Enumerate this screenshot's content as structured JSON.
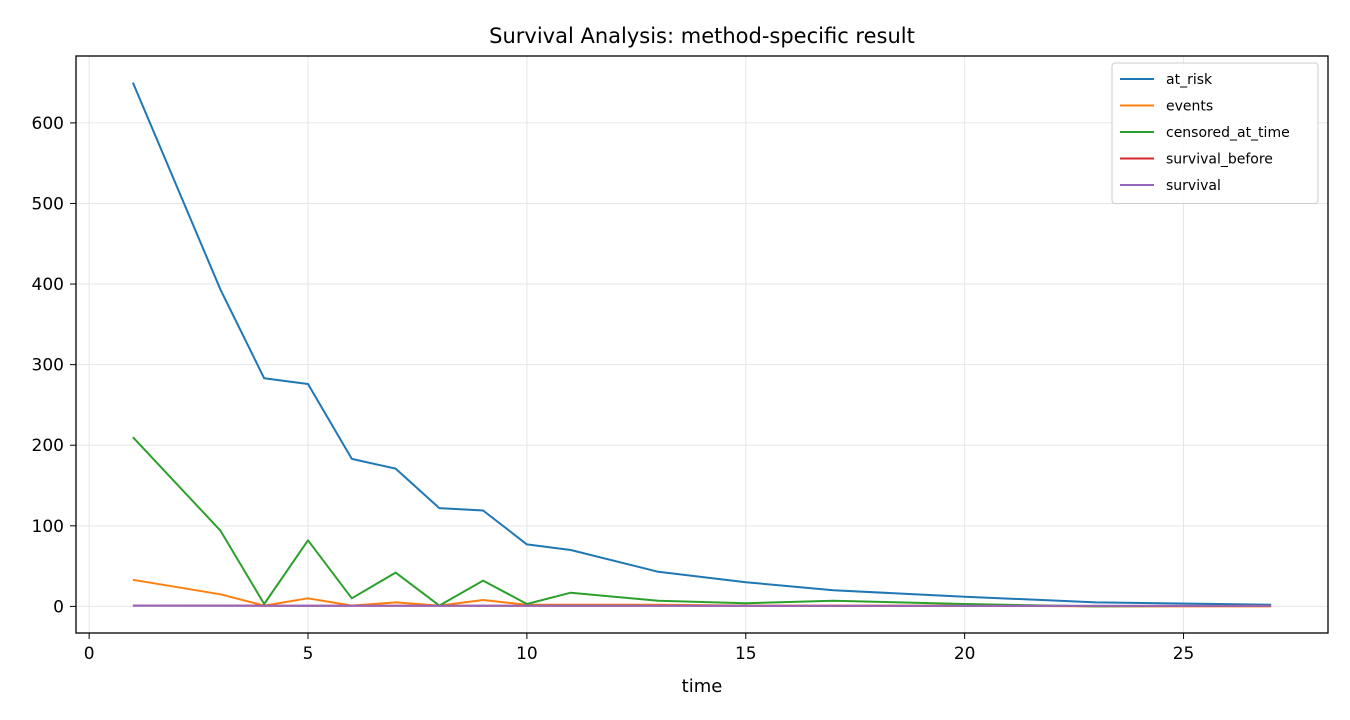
{
  "chart_data": {
    "type": "line",
    "title": "Survival Analysis: method-specific result",
    "xlabel": "time",
    "ylabel": "",
    "xlim": [
      -0.3,
      28.3
    ],
    "ylim": [
      -33,
      683
    ],
    "xticks": [
      0,
      5,
      10,
      15,
      20,
      25
    ],
    "yticks": [
      0,
      100,
      200,
      300,
      400,
      500,
      600
    ],
    "grid": true,
    "legend_position": "top-right",
    "series": [
      {
        "name": "at_risk",
        "color": "#1f77b4",
        "x": [
          1,
          3,
          4,
          5,
          6,
          7,
          8,
          9,
          10,
          11,
          13,
          15,
          17,
          20,
          23,
          27
        ],
        "y": [
          650,
          393,
          283,
          276,
          183,
          171,
          122,
          119,
          77,
          70,
          43,
          30,
          20,
          12,
          5,
          2
        ]
      },
      {
        "name": "events",
        "color": "#ff7f0e",
        "x": [
          1,
          3,
          4,
          5,
          6,
          7,
          8,
          9,
          10,
          11,
          13,
          15,
          17,
          20,
          23,
          27
        ],
        "y": [
          33,
          15,
          1,
          10,
          1,
          5,
          1,
          8,
          2,
          2,
          2,
          1,
          1,
          1,
          0,
          0
        ]
      },
      {
        "name": "censored_at_time",
        "color": "#2ca02c",
        "x": [
          1,
          3,
          4,
          5,
          6,
          7,
          8,
          9,
          10,
          11,
          13,
          15,
          17,
          20,
          23,
          27
        ],
        "y": [
          210,
          94,
          3,
          82,
          10,
          42,
          1,
          32,
          3,
          17,
          7,
          4,
          7,
          3,
          0,
          1
        ]
      },
      {
        "name": "survival_before",
        "color": "#d62728",
        "x": [
          1,
          3,
          4,
          5,
          6,
          7,
          8,
          9,
          10,
          11,
          13,
          15,
          17,
          20,
          23,
          27
        ],
        "y": [
          1.0,
          0.95,
          0.91,
          0.91,
          0.88,
          0.87,
          0.85,
          0.84,
          0.78,
          0.76,
          0.74,
          0.7,
          0.68,
          0.64,
          0.59,
          0.59
        ]
      },
      {
        "name": "survival",
        "color": "#9467bd",
        "x": [
          1,
          3,
          4,
          5,
          6,
          7,
          8,
          9,
          10,
          11,
          13,
          15,
          17,
          20,
          23,
          27
        ],
        "y": [
          0.95,
          0.91,
          0.91,
          0.88,
          0.87,
          0.85,
          0.84,
          0.78,
          0.76,
          0.74,
          0.7,
          0.68,
          0.64,
          0.59,
          0.59,
          0.59
        ]
      }
    ]
  }
}
